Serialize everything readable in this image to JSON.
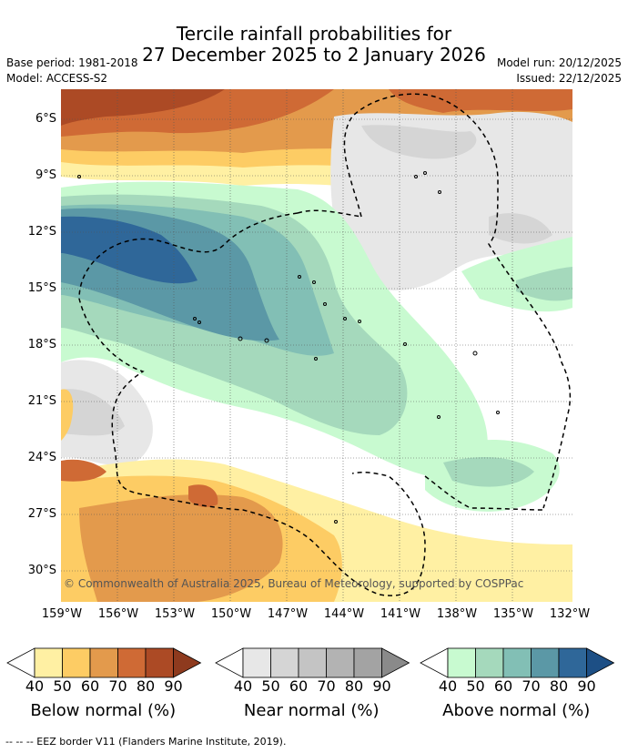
{
  "title_line1": "Tercile rainfall probabilities for",
  "title_line2": "27 December 2025 to 2 January 2026",
  "base_period": "Base period: 1981-2018",
  "model": "Model: ACCESS-S2",
  "model_run": "Model run: 20/12/2025",
  "issued": "Issued: 22/12/2025",
  "copyright": "© Commonwealth of Australia 2025, Bureau of Meteorology, supported by COSPPac",
  "lat_labels": [
    "6°S",
    "9°S",
    "12°S",
    "15°S",
    "18°S",
    "21°S",
    "24°S",
    "27°S",
    "30°S"
  ],
  "lon_labels": [
    "159°W",
    "156°W",
    "153°W",
    "150°W",
    "147°W",
    "144°W",
    "141°W",
    "138°W",
    "135°W",
    "132°W"
  ],
  "colorbars": [
    {
      "label": "Below normal (%)",
      "ticks": [
        "40",
        "50",
        "60",
        "70",
        "80",
        "90"
      ],
      "colors": [
        "#fff0a3",
        "#fdcc64",
        "#e39a4c",
        "#cf6a35",
        "#ac4a25"
      ]
    },
    {
      "label": "Near normal (%)",
      "ticks": [
        "40",
        "50",
        "60",
        "70",
        "80",
        "90"
      ],
      "colors": [
        "#e7e7e7",
        "#d5d5d5",
        "#c4c4c4",
        "#b3b3b3",
        "#a3a3a3"
      ]
    },
    {
      "label": "Above normal (%)",
      "ticks": [
        "40",
        "50",
        "60",
        "70",
        "80",
        "90"
      ],
      "colors": [
        "#c8fad0",
        "#a5d9bc",
        "#82bfb5",
        "#5b98a6",
        "#2f6799"
      ]
    }
  ],
  "footer": "-- -- -- EEZ border V11 (Flanders Marine Institute, 2019)."
}
